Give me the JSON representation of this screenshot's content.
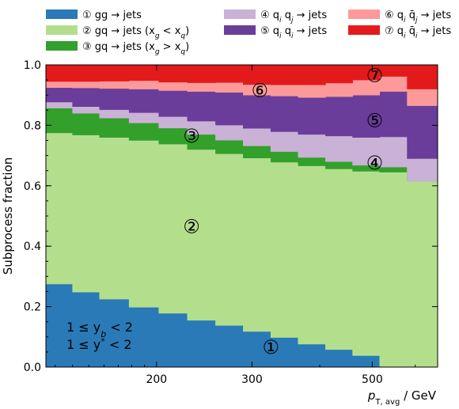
{
  "chart_data": {
    "type": "area",
    "step": true,
    "xlabel_main": "p",
    "xlabel_sub": "T, avg",
    "xlabel_unit": " / GeV",
    "ylabel": "Subprocess fraction",
    "x_scale": "log",
    "xlim": [
      125,
      660
    ],
    "ylim": [
      0,
      1.0
    ],
    "x_ticks": [
      200,
      300,
      500
    ],
    "y_ticks": [
      0.0,
      0.2,
      0.4,
      0.6,
      0.8,
      1.0
    ],
    "x_edges": [
      125,
      140,
      157,
      178,
      202,
      228,
      257,
      289,
      325,
      365,
      410,
      460,
      516,
      580,
      660
    ],
    "series": [
      {
        "name": "① gg → jets",
        "color": "#2a7ab8",
        "values": [
          0.275,
          0.248,
          0.225,
          0.198,
          0.178,
          0.155,
          0.138,
          0.118,
          0.098,
          0.076,
          0.058,
          0.038,
          0.0,
          0.0
        ]
      },
      {
        "name": "② gq → jets (x_g < x_q)",
        "color": "#b3df8d",
        "values": [
          0.5,
          0.52,
          0.535,
          0.552,
          0.56,
          0.565,
          0.568,
          0.574,
          0.58,
          0.59,
          0.598,
          0.61,
          0.645,
          0.615
        ]
      },
      {
        "name": "③ gq → jets (x_g > x_q)",
        "color": "#33a02c",
        "values": [
          0.082,
          0.072,
          0.064,
          0.058,
          0.053,
          0.05,
          0.045,
          0.04,
          0.035,
          0.028,
          0.024,
          0.02,
          0.017,
          0.0
        ]
      },
      {
        "name": "④ q_i q_j → jets",
        "color": "#cab2d6",
        "values": [
          0.02,
          0.022,
          0.028,
          0.034,
          0.038,
          0.044,
          0.05,
          0.058,
          0.066,
          0.076,
          0.085,
          0.092,
          0.1,
          0.075
        ]
      },
      {
        "name": "⑤ q_i q_i → jets",
        "color": "#6a3d9a",
        "values": [
          0.048,
          0.062,
          0.07,
          0.078,
          0.086,
          0.098,
          0.108,
          0.11,
          0.118,
          0.122,
          0.13,
          0.14,
          0.15,
          0.175
        ]
      },
      {
        "name": "⑥ q_i q̄_j → jets",
        "color": "#fb9a99",
        "values": [
          0.02,
          0.021,
          0.024,
          0.028,
          0.028,
          0.029,
          0.033,
          0.035,
          0.037,
          0.042,
          0.045,
          0.05,
          0.05,
          0.055
        ]
      },
      {
        "name": "⑦ q_i q̄_i → jets",
        "color": "#e31a1c",
        "values": [
          0.055,
          0.055,
          0.054,
          0.052,
          0.057,
          0.059,
          0.058,
          0.065,
          0.066,
          0.066,
          0.06,
          0.05,
          0.038,
          0.08
        ]
      }
    ],
    "annotations": [
      {
        "text": "①",
        "x": 325,
        "y": 0.065
      },
      {
        "text": "②",
        "x": 232,
        "y": 0.465
      },
      {
        "text": "③",
        "x": 232,
        "y": 0.765
      },
      {
        "text": "④",
        "x": 505,
        "y": 0.675
      },
      {
        "text": "⑤",
        "x": 505,
        "y": 0.815
      },
      {
        "text": "⑥",
        "x": 310,
        "y": 0.915
      },
      {
        "text": "⑦",
        "x": 505,
        "y": 0.965
      }
    ],
    "region_text": [
      "1 ≤ y_b < 2",
      "1 ≤ y* < 2"
    ],
    "legend_position": "top"
  }
}
